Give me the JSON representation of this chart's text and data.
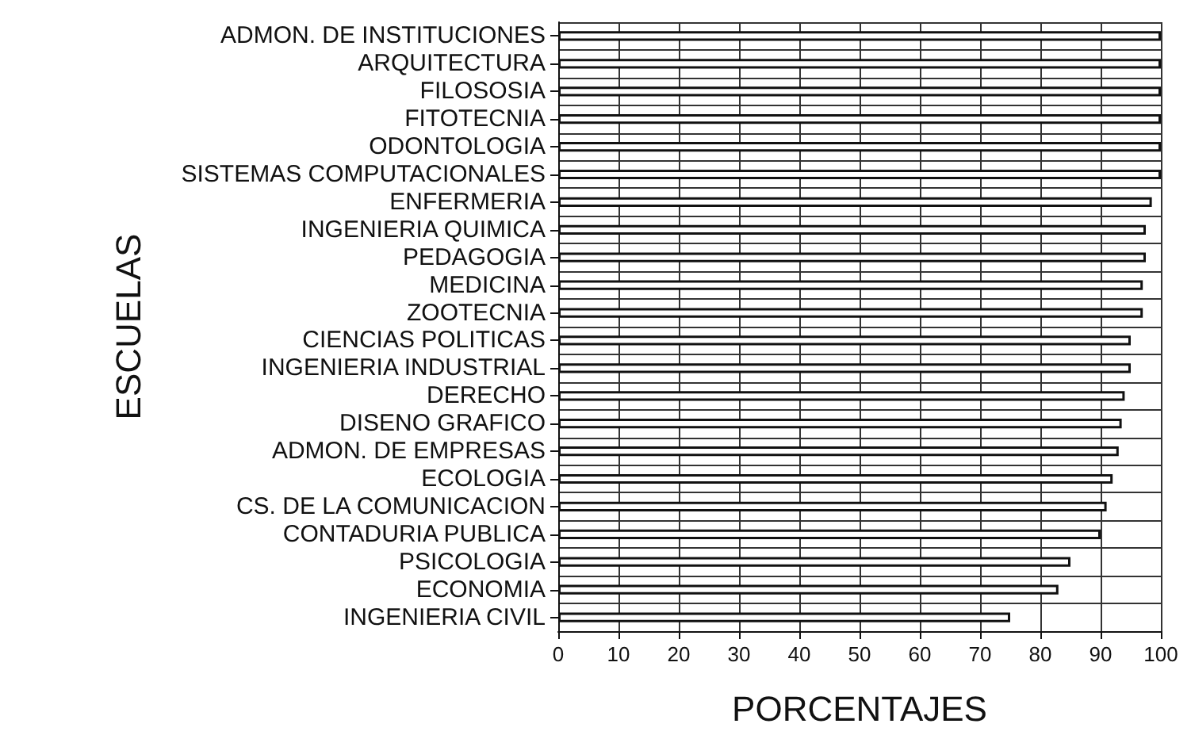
{
  "chart_data": {
    "type": "bar",
    "orientation": "horizontal",
    "xlabel": "PORCENTAJES",
    "ylabel": "ESCUELAS",
    "categories": [
      "ADMON. DE INSTITUCIONES",
      "ARQUITECTURA",
      "FILOSOSIA",
      "FITOTECNIA",
      "ODONTOLOGIA",
      "SISTEMAS COMPUTACIONALES",
      "ENFERMERIA",
      "INGENIERIA QUIMICA",
      "PEDAGOGIA",
      "MEDICINA",
      "ZOOTECNIA",
      "CIENCIAS POLITICAS",
      "INGENIERIA INDUSTRIAL",
      "DERECHO",
      "DISENO GRAFICO",
      "ADMON. DE EMPRESAS",
      "ECOLOGIA",
      "CS. DE LA COMUNICACION",
      "CONTADURIA PUBLICA",
      "PSICOLOGIA",
      "ECONOMIA",
      "INGENIERIA CIVIL"
    ],
    "values": [
      100,
      100,
      100,
      100,
      100,
      100,
      98.5,
      97.5,
      97.5,
      97,
      97,
      95,
      95,
      94,
      93.5,
      93,
      92,
      91,
      90,
      85,
      83,
      75
    ],
    "color": "#ffffff",
    "xlim": [
      0,
      100
    ],
    "xticks": [
      0,
      10,
      20,
      30,
      40,
      50,
      60,
      70,
      80,
      90,
      100
    ],
    "grid": true
  }
}
